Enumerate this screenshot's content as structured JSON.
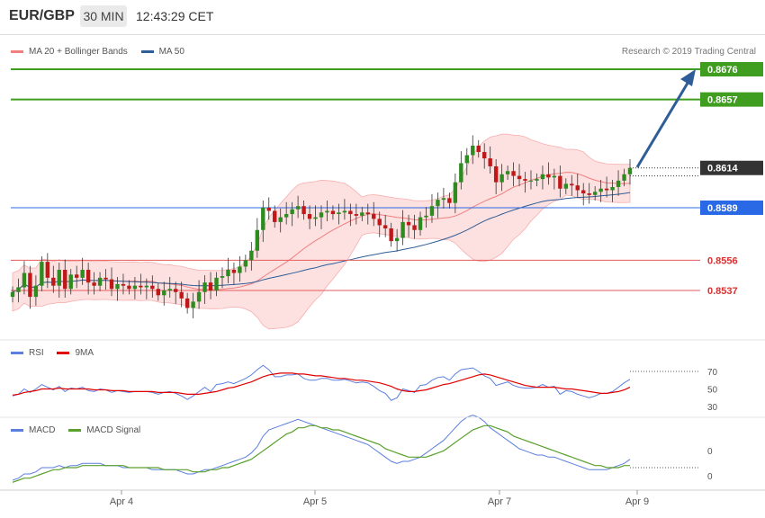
{
  "header": {
    "symbol": "EUR/GBP",
    "timeframe": "30 MIN",
    "time": "12:43:29 CET"
  },
  "legend": {
    "ma20": {
      "label": "MA 20 + Bollinger Bands",
      "color": "#f08080"
    },
    "ma50": {
      "label": "MA 50",
      "color": "#2e5d97"
    }
  },
  "copyright": "Research © 2019 Trading Central",
  "price_levels": [
    {
      "value": "0.8676",
      "type": "target",
      "color": "#3f9d1f"
    },
    {
      "value": "0.8657",
      "type": "target",
      "color": "#3f9d1f"
    },
    {
      "value": "0.8614",
      "type": "current",
      "color": "#333333"
    },
    {
      "value": "0.8589",
      "type": "pivot",
      "color": "#2969e6"
    },
    {
      "value": "0.8556",
      "type": "support",
      "color": "#e65c5c"
    },
    {
      "value": "0.8537",
      "type": "support",
      "color": "#e65c5c"
    }
  ],
  "rsi_legend": {
    "rsi": "RSI",
    "ma": "9MA",
    "rsi_color": "#5b7fde",
    "ma_color": "#e00000"
  },
  "rsi_ticks": [
    "70",
    "50",
    "30"
  ],
  "macd_legend": {
    "macd": "MACD",
    "signal": "MACD Signal",
    "macd_color": "#5b7fde",
    "signal_color": "#5aa02c"
  },
  "macd_ticks": [
    "0",
    "0"
  ],
  "x_labels": [
    "Apr 4",
    "Apr 5",
    "Apr 7",
    "Apr 9"
  ],
  "chart_data": {
    "type": "candlestick",
    "price_y_values": [
      0.8537,
      0.8556,
      0.8589,
      0.8614,
      0.8657,
      0.8676
    ],
    "closes": [
      0.8536,
      0.8539,
      0.8548,
      0.8533,
      0.854,
      0.8555,
      0.8545,
      0.854,
      0.855,
      0.8538,
      0.8547,
      0.8545,
      0.855,
      0.8542,
      0.854,
      0.8545,
      0.8544,
      0.8538,
      0.8541,
      0.854,
      0.8538,
      0.854,
      0.8539,
      0.854,
      0.8538,
      0.8534,
      0.8537,
      0.8538,
      0.8536,
      0.8532,
      0.8526,
      0.853,
      0.8536,
      0.8542,
      0.8537,
      0.8545,
      0.8546,
      0.855,
      0.8548,
      0.8552,
      0.8556,
      0.8562,
      0.8575,
      0.8589,
      0.8587,
      0.858,
      0.8583,
      0.8585,
      0.8588,
      0.859,
      0.8585,
      0.8582,
      0.8583,
      0.8586,
      0.8587,
      0.8585,
      0.8586,
      0.8587,
      0.8585,
      0.8584,
      0.8586,
      0.8585,
      0.8582,
      0.8578,
      0.8576,
      0.8568,
      0.857,
      0.858,
      0.8578,
      0.8575,
      0.8583,
      0.8584,
      0.859,
      0.8594,
      0.8595,
      0.8592,
      0.8605,
      0.8617,
      0.8622,
      0.8628,
      0.8624,
      0.862,
      0.8615,
      0.8605,
      0.861,
      0.8612,
      0.8609,
      0.8607,
      0.8606,
      0.8606,
      0.8607,
      0.861,
      0.8608,
      0.8609,
      0.8601,
      0.8604,
      0.8603,
      0.86,
      0.8598,
      0.8597,
      0.8599,
      0.8601,
      0.86,
      0.8602,
      0.8606,
      0.861,
      0.8614
    ]
  },
  "rsi_data": [
    42,
    44,
    50,
    46,
    50,
    55,
    52,
    49,
    53,
    47,
    51,
    50,
    52,
    48,
    47,
    50,
    49,
    46,
    48,
    47,
    46,
    47,
    47,
    47,
    46,
    44,
    46,
    47,
    45,
    42,
    38,
    42,
    47,
    52,
    47,
    55,
    56,
    58,
    56,
    59,
    62,
    66,
    72,
    77,
    72,
    64,
    64,
    66,
    66,
    67,
    62,
    60,
    60,
    62,
    62,
    60,
    60,
    61,
    59,
    57,
    58,
    57,
    53,
    48,
    45,
    37,
    40,
    50,
    48,
    46,
    54,
    55,
    60,
    63,
    64,
    60,
    67,
    72,
    73,
    74,
    70,
    65,
    62,
    54,
    56,
    58,
    54,
    52,
    51,
    51,
    52,
    55,
    52,
    53,
    44,
    48,
    47,
    44,
    42,
    40,
    42,
    45,
    45,
    47,
    52,
    57,
    61
  ],
  "rsi_ma": [
    43,
    44,
    46,
    47,
    48,
    50,
    50,
    50,
    51,
    50,
    50,
    50,
    50,
    50,
    49,
    49,
    49,
    48,
    48,
    48,
    47,
    47,
    47,
    47,
    47,
    46,
    46,
    46,
    46,
    45,
    44,
    44,
    44,
    45,
    46,
    47,
    49,
    51,
    52,
    54,
    56,
    58,
    61,
    64,
    66,
    67,
    68,
    68,
    68,
    67,
    67,
    66,
    65,
    65,
    64,
    63,
    62,
    62,
    61,
    60,
    60,
    59,
    58,
    57,
    55,
    53,
    50,
    48,
    47,
    47,
    48,
    49,
    51,
    53,
    55,
    56,
    58,
    60,
    62,
    64,
    66,
    67,
    66,
    64,
    62,
    60,
    58,
    56,
    54,
    53,
    52,
    52,
    52,
    52,
    51,
    50,
    50,
    49,
    48,
    47,
    46,
    45,
    45,
    46,
    47,
    49,
    52
  ],
  "macd_data": [
    -0.0009,
    -0.0008,
    -0.0006,
    -0.0006,
    -0.0005,
    -0.0003,
    -0.0003,
    -0.0003,
    -0.0002,
    -0.0003,
    -0.0002,
    -0.0002,
    -0.0001,
    -0.0001,
    -0.0001,
    -0.0001,
    -0.0002,
    -0.0002,
    -0.0002,
    -0.0003,
    -0.0003,
    -0.0003,
    -0.0003,
    -0.0003,
    -0.0004,
    -0.0004,
    -0.0004,
    -0.0004,
    -0.0004,
    -0.0005,
    -0.0006,
    -0.0006,
    -0.0005,
    -0.0004,
    -0.0004,
    -0.0003,
    -0.0002,
    -0.0001,
    0.0,
    0.0001,
    0.0002,
    0.0004,
    0.0007,
    0.0012,
    0.0015,
    0.0016,
    0.0017,
    0.0018,
    0.0019,
    0.002,
    0.0019,
    0.0018,
    0.0017,
    0.0016,
    0.0015,
    0.0014,
    0.0013,
    0.0012,
    0.0011,
    0.001,
    0.0009,
    0.0008,
    0.0006,
    0.0004,
    0.0002,
    0.0,
    -0.0001,
    0.0,
    0.0,
    0.0001,
    0.0002,
    0.0004,
    0.0006,
    0.0008,
    0.001,
    0.0013,
    0.0016,
    0.0019,
    0.0021,
    0.0022,
    0.0021,
    0.0019,
    0.0016,
    0.0014,
    0.0012,
    0.001,
    0.0008,
    0.0006,
    0.0005,
    0.0004,
    0.0003,
    0.0003,
    0.0002,
    0.0002,
    0.0001,
    0.0,
    -0.0001,
    -0.0002,
    -0.0003,
    -0.0004,
    -0.0004,
    -0.0004,
    -0.0004,
    -0.0003,
    -0.0002,
    -0.0001,
    0.0001
  ],
  "macd_signal": [
    -0.001,
    -0.0009,
    -0.0008,
    -0.0008,
    -0.0007,
    -0.0006,
    -0.0005,
    -0.0004,
    -0.0004,
    -0.0003,
    -0.0003,
    -0.0003,
    -0.0002,
    -0.0002,
    -0.0002,
    -0.0002,
    -0.0002,
    -0.0002,
    -0.0002,
    -0.0002,
    -0.0003,
    -0.0003,
    -0.0003,
    -0.0003,
    -0.0003,
    -0.0003,
    -0.0004,
    -0.0004,
    -0.0004,
    -0.0004,
    -0.0004,
    -0.0005,
    -0.0005,
    -0.0005,
    -0.0004,
    -0.0004,
    -0.0003,
    -0.0003,
    -0.0002,
    -0.0001,
    0.0,
    0.0001,
    0.0003,
    0.0005,
    0.0007,
    0.0009,
    0.0011,
    0.0013,
    0.0014,
    0.0016,
    0.0016,
    0.0017,
    0.0017,
    0.0016,
    0.0016,
    0.0015,
    0.0015,
    0.0014,
    0.0013,
    0.0012,
    0.0011,
    0.001,
    0.0009,
    0.0008,
    0.0006,
    0.0005,
    0.0004,
    0.0003,
    0.0002,
    0.0002,
    0.0002,
    0.0002,
    0.0003,
    0.0004,
    0.0005,
    0.0007,
    0.0009,
    0.0011,
    0.0013,
    0.0015,
    0.0016,
    0.0017,
    0.0017,
    0.0016,
    0.0015,
    0.0014,
    0.0012,
    0.0011,
    0.001,
    0.0009,
    0.0008,
    0.0007,
    0.0006,
    0.0005,
    0.0004,
    0.0003,
    0.0002,
    0.0001,
    0.0,
    -0.0001,
    -0.0002,
    -0.0002,
    -0.0003,
    -0.0003,
    -0.0003,
    -0.0002,
    -0.0002
  ]
}
